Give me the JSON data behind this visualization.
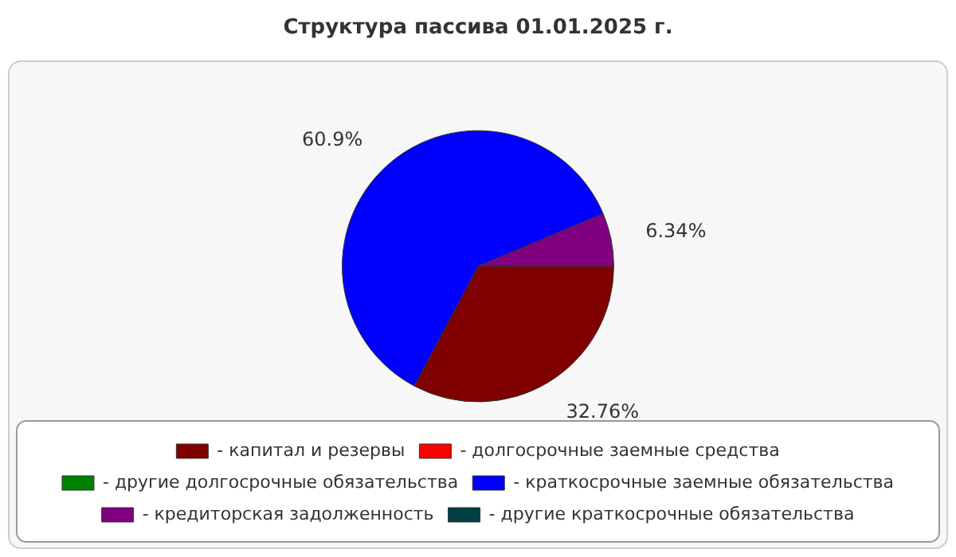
{
  "chart_data": {
    "type": "pie",
    "title": "Структура пассива 01.01.2025 г.",
    "categories": [
      "- капитал и резервы",
      "- долгосрочные заемные средства",
      "- другие долгосрочные обязательства",
      "- краткосрочные заемные обязательства",
      "- кредиторская задолженность",
      "- другие краткосрочные обязательства"
    ],
    "values": [
      32.76,
      0,
      0,
      60.9,
      6.34,
      0
    ],
    "colors": [
      "#800000",
      "#ff0000",
      "#008000",
      "#0000ff",
      "#800080",
      "#004040"
    ],
    "value_labels": [
      "32.76%",
      null,
      null,
      "60.9%",
      "6.34%",
      null
    ],
    "legend": "bottom"
  }
}
